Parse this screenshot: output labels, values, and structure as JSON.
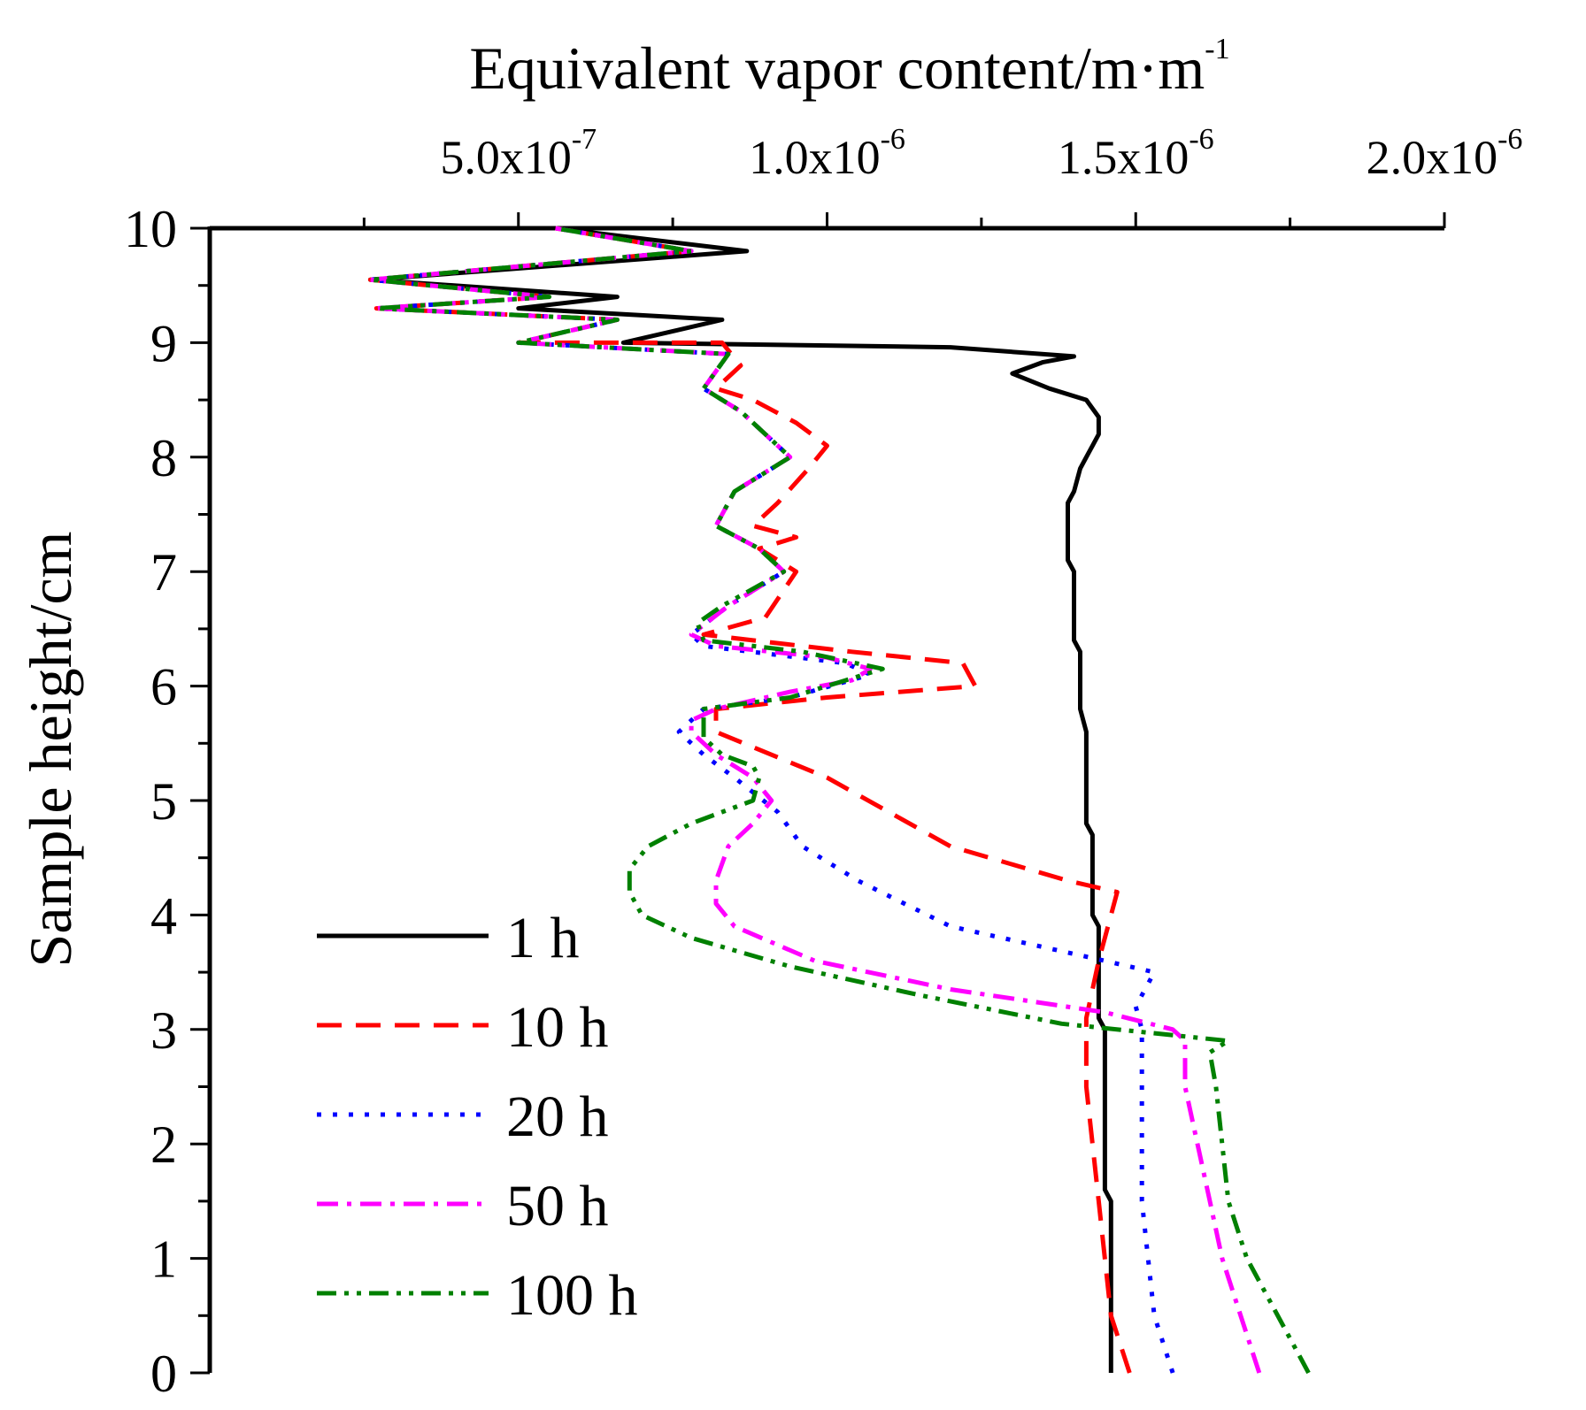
{
  "chart_data": {
    "type": "line",
    "xlabel": "Equivalent vapor content/m·m",
    "xlabel_exponent": "-1",
    "ylabel": "Sample height/cm",
    "x_axis_position": "top",
    "xlim": [
      0,
      2e-06
    ],
    "ylim": [
      0,
      10
    ],
    "x_major_ticks": [
      {
        "value": 5e-07,
        "mantissa": "5.0x10",
        "exponent": "-7"
      },
      {
        "value": 1e-06,
        "mantissa": "1.0x10",
        "exponent": "-6"
      },
      {
        "value": 1.5e-06,
        "mantissa": "1.5x10",
        "exponent": "-6"
      },
      {
        "value": 2e-06,
        "mantissa": "2.0x10",
        "exponent": "-6"
      }
    ],
    "y_ticks": [
      "0",
      "1",
      "2",
      "3",
      "4",
      "5",
      "6",
      "7",
      "8",
      "9",
      "10"
    ],
    "grid": false,
    "legend_position": "bottom-left",
    "series": [
      {
        "name": "1 h",
        "color": "#000000",
        "dash": "solid",
        "points": [
          [
            1.46e-06,
            0
          ],
          [
            1.46e-06,
            1.5
          ],
          [
            1.45e-06,
            1.6
          ],
          [
            1.45e-06,
            3.0
          ],
          [
            1.44e-06,
            3.1
          ],
          [
            1.44e-06,
            3.9
          ],
          [
            1.43e-06,
            4.0
          ],
          [
            1.43e-06,
            4.7
          ],
          [
            1.42e-06,
            4.8
          ],
          [
            1.42e-06,
            5.6
          ],
          [
            1.41e-06,
            5.8
          ],
          [
            1.41e-06,
            6.3
          ],
          [
            1.4e-06,
            6.4
          ],
          [
            1.4e-06,
            7.0
          ],
          [
            1.39e-06,
            7.1
          ],
          [
            1.39e-06,
            7.6
          ],
          [
            1.4e-06,
            7.7
          ],
          [
            1.41e-06,
            7.9
          ],
          [
            1.42e-06,
            8.0
          ],
          [
            1.43e-06,
            8.1
          ],
          [
            1.44e-06,
            8.2
          ],
          [
            1.44e-06,
            8.35
          ],
          [
            1.42e-06,
            8.5
          ],
          [
            1.36e-06,
            8.6
          ],
          [
            1.3e-06,
            8.73
          ],
          [
            1.35e-06,
            8.83
          ],
          [
            1.4e-06,
            8.88
          ],
          [
            1.2e-06,
            8.96
          ],
          [
            6.7e-07,
            9.0
          ],
          [
            8.3e-07,
            9.2
          ],
          [
            5e-07,
            9.3
          ],
          [
            6.6e-07,
            9.4
          ],
          [
            2.6e-07,
            9.55
          ],
          [
            8.7e-07,
            9.8
          ],
          [
            5.6e-07,
            10
          ]
        ]
      },
      {
        "name": "10 h",
        "color": "#ff0000",
        "dash": "long-dash",
        "points": [
          [
            1.49e-06,
            0
          ],
          [
            1.46e-06,
            0.5
          ],
          [
            1.44e-06,
            1.5
          ],
          [
            1.43e-06,
            2.0
          ],
          [
            1.42e-06,
            2.5
          ],
          [
            1.42e-06,
            3.1
          ],
          [
            1.44e-06,
            3.6
          ],
          [
            1.47e-06,
            4.2
          ],
          [
            1.39e-06,
            4.3
          ],
          [
            1.2e-06,
            4.6
          ],
          [
            1e-06,
            5.2
          ],
          [
            8.2e-07,
            5.6
          ],
          [
            8.2e-07,
            5.8
          ],
          [
            1e-06,
            5.9
          ],
          [
            1.24e-06,
            6.0
          ],
          [
            1.22e-06,
            6.2
          ],
          [
            1.04e-06,
            6.3
          ],
          [
            8e-07,
            6.45
          ],
          [
            9e-07,
            6.6
          ],
          [
            9.5e-07,
            7.0
          ],
          [
            8.9e-07,
            7.2
          ],
          [
            9.5e-07,
            7.3
          ],
          [
            8.8e-07,
            7.4
          ],
          [
            9.2e-07,
            7.6
          ],
          [
            9.7e-07,
            7.9
          ],
          [
            1e-06,
            8.1
          ],
          [
            9.5e-07,
            8.3
          ],
          [
            8.8e-07,
            8.5
          ],
          [
            8.2e-07,
            8.6
          ],
          [
            8.6e-07,
            8.8
          ],
          [
            8.3e-07,
            9.0
          ],
          [
            5e-07,
            9.0
          ],
          [
            6.6e-07,
            9.2
          ],
          [
            2.7e-07,
            9.3
          ],
          [
            5.5e-07,
            9.4
          ],
          [
            2.6e-07,
            9.55
          ],
          [
            7.8e-07,
            9.8
          ],
          [
            5.6e-07,
            10
          ]
        ]
      },
      {
        "name": "20 h",
        "color": "#0000ff",
        "dash": "dotted",
        "points": [
          [
            1.56e-06,
            0
          ],
          [
            1.53e-06,
            0.5
          ],
          [
            1.52e-06,
            1.0
          ],
          [
            1.51e-06,
            1.5
          ],
          [
            1.51e-06,
            2.0
          ],
          [
            1.51e-06,
            2.5
          ],
          [
            1.51e-06,
            3.0
          ],
          [
            1.5e-06,
            3.2
          ],
          [
            1.53e-06,
            3.5
          ],
          [
            1.45e-06,
            3.6
          ],
          [
            1.2e-06,
            3.9
          ],
          [
            1.05e-06,
            4.3
          ],
          [
            9.6e-07,
            4.6
          ],
          [
            9.2e-07,
            4.9
          ],
          [
            8.5e-07,
            5.2
          ],
          [
            8e-07,
            5.4
          ],
          [
            7.6e-07,
            5.6
          ],
          [
            8e-07,
            5.8
          ],
          [
            9.4e-07,
            5.9
          ],
          [
            1.07e-06,
            6.1
          ],
          [
            1.03e-06,
            6.2
          ],
          [
            8e-07,
            6.35
          ],
          [
            7.8e-07,
            6.45
          ],
          [
            8.4e-07,
            6.7
          ],
          [
            9.3e-07,
            7.0
          ],
          [
            8.9e-07,
            7.2
          ],
          [
            8.2e-07,
            7.4
          ],
          [
            8.5e-07,
            7.7
          ],
          [
            9.4e-07,
            8.0
          ],
          [
            9e-07,
            8.2
          ],
          [
            8.6e-07,
            8.4
          ],
          [
            8e-07,
            8.6
          ],
          [
            8.4e-07,
            8.9
          ],
          [
            5e-07,
            9.0
          ],
          [
            6.6e-07,
            9.2
          ],
          [
            2.7e-07,
            9.3
          ],
          [
            5.5e-07,
            9.4
          ],
          [
            2.6e-07,
            9.55
          ],
          [
            7.8e-07,
            9.8
          ],
          [
            5.6e-07,
            10
          ]
        ]
      },
      {
        "name": "50 h",
        "color": "#ff00ff",
        "dash": "dash-dot",
        "points": [
          [
            1.7e-06,
            0
          ],
          [
            1.67e-06,
            0.5
          ],
          [
            1.64e-06,
            1.0
          ],
          [
            1.62e-06,
            1.5
          ],
          [
            1.6e-06,
            2.0
          ],
          [
            1.58e-06,
            2.5
          ],
          [
            1.58e-06,
            2.9
          ],
          [
            1.56e-06,
            3.0
          ],
          [
            1.45e-06,
            3.15
          ],
          [
            1.2e-06,
            3.35
          ],
          [
            9.8e-07,
            3.6
          ],
          [
            8.5e-07,
            3.9
          ],
          [
            8.2e-07,
            4.1
          ],
          [
            8.2e-07,
            4.3
          ],
          [
            8.4e-07,
            4.6
          ],
          [
            8.8e-07,
            4.8
          ],
          [
            9.1e-07,
            5.0
          ],
          [
            8.8e-07,
            5.2
          ],
          [
            8.2e-07,
            5.4
          ],
          [
            7.8e-07,
            5.6
          ],
          [
            7.8e-07,
            5.7
          ],
          [
            8.2e-07,
            5.8
          ],
          [
            9.4e-07,
            5.95
          ],
          [
            1.04e-06,
            6.05
          ],
          [
            1.07e-06,
            6.15
          ],
          [
            1e-06,
            6.25
          ],
          [
            8.2e-07,
            6.35
          ],
          [
            7.8e-07,
            6.45
          ],
          [
            8.4e-07,
            6.7
          ],
          [
            9.3e-07,
            7.0
          ],
          [
            8.9e-07,
            7.2
          ],
          [
            8.2e-07,
            7.4
          ],
          [
            8.5e-07,
            7.7
          ],
          [
            9.4e-07,
            8.0
          ],
          [
            9e-07,
            8.2
          ],
          [
            8.6e-07,
            8.4
          ],
          [
            8e-07,
            8.6
          ],
          [
            8.4e-07,
            8.9
          ],
          [
            5e-07,
            9.0
          ],
          [
            6.6e-07,
            9.2
          ],
          [
            2.7e-07,
            9.3
          ],
          [
            5.5e-07,
            9.4
          ],
          [
            2.6e-07,
            9.55
          ],
          [
            7.8e-07,
            9.8
          ],
          [
            5.6e-07,
            10
          ]
        ]
      },
      {
        "name": "100 h",
        "color": "#008000",
        "dash": "dash-dot-dot",
        "points": [
          [
            1.78e-06,
            0
          ],
          [
            1.77e-06,
            0.1
          ],
          [
            1.73e-06,
            0.5
          ],
          [
            1.68e-06,
            1.0
          ],
          [
            1.65e-06,
            1.5
          ],
          [
            1.64e-06,
            2.0
          ],
          [
            1.63e-06,
            2.5
          ],
          [
            1.62e-06,
            2.8
          ],
          [
            1.65e-06,
            2.9
          ],
          [
            1.38e-06,
            3.05
          ],
          [
            1.15e-06,
            3.3
          ],
          [
            9.4e-07,
            3.55
          ],
          [
            7.8e-07,
            3.8
          ],
          [
            7e-07,
            4.0
          ],
          [
            6.8e-07,
            4.2
          ],
          [
            6.8e-07,
            4.4
          ],
          [
            7.1e-07,
            4.6
          ],
          [
            7.8e-07,
            4.8
          ],
          [
            8.8e-07,
            5.0
          ],
          [
            8.9e-07,
            5.2
          ],
          [
            8.8e-07,
            5.3
          ],
          [
            8.3e-07,
            5.4
          ],
          [
            8e-07,
            5.55
          ],
          [
            8e-07,
            5.8
          ],
          [
            9.4e-07,
            5.9
          ],
          [
            1.03e-06,
            6.05
          ],
          [
            1.09e-06,
            6.15
          ],
          [
            9.6e-07,
            6.3
          ],
          [
            8e-07,
            6.4
          ],
          [
            7.9e-07,
            6.55
          ],
          [
            8.3e-07,
            6.7
          ],
          [
            9.3e-07,
            7.0
          ],
          [
            8.9e-07,
            7.2
          ],
          [
            8.2e-07,
            7.4
          ],
          [
            8.5e-07,
            7.7
          ],
          [
            9.4e-07,
            8.0
          ],
          [
            9e-07,
            8.2
          ],
          [
            8.6e-07,
            8.4
          ],
          [
            8e-07,
            8.6
          ],
          [
            8.4e-07,
            8.9
          ],
          [
            5e-07,
            9.0
          ],
          [
            6.6e-07,
            9.2
          ],
          [
            2.7e-07,
            9.3
          ],
          [
            5.5e-07,
            9.4
          ],
          [
            2.6e-07,
            9.55
          ],
          [
            7.8e-07,
            9.8
          ],
          [
            5.6e-07,
            10
          ]
        ]
      }
    ]
  }
}
